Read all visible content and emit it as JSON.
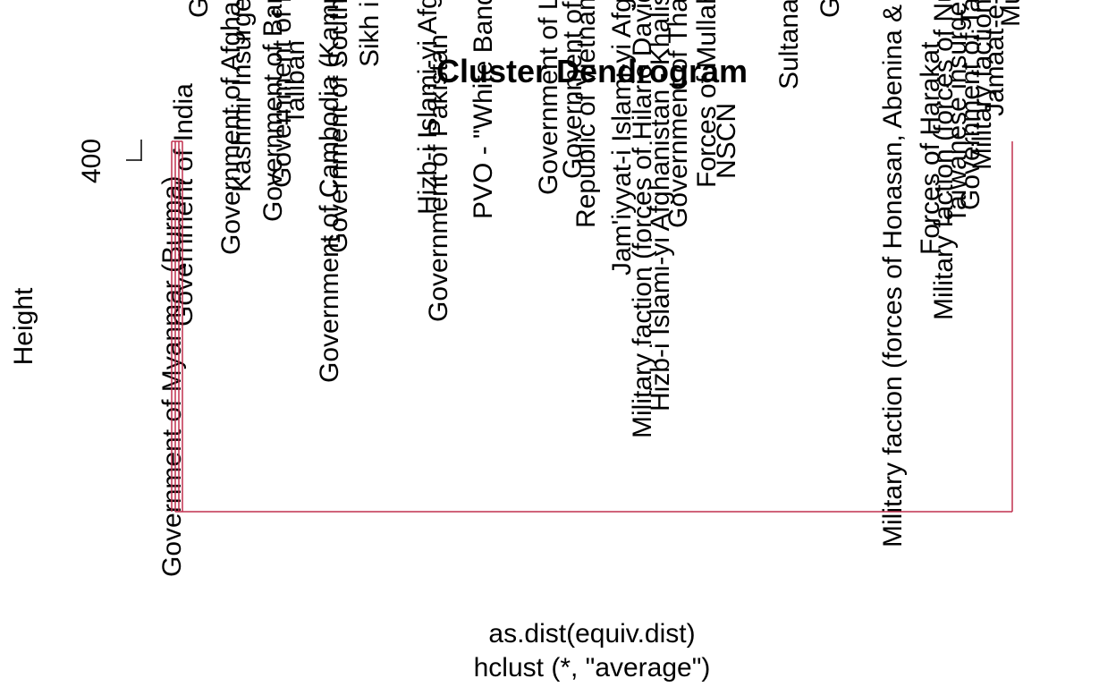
{
  "chart_data": {
    "type": "dendrogram",
    "title": "Cluster Dendrogram",
    "xlabel": "as.dist(equiv.dist)",
    "sublabel": "hclust (*, \"average\")",
    "ylabel": "Height",
    "y_ticks": [
      "400"
    ],
    "branch_color": "#c0304f",
    "leaves": [
      {
        "label": "Government of Myanmar (Burma)",
        "x": 0,
        "height": 0
      },
      {
        "label": "Government of India",
        "x": 1,
        "height": 0
      },
      {
        "label": "Government of Indonesia",
        "x": 2,
        "height": 0
      },
      {
        "label": "Government of Afghanistan",
        "x": 3,
        "height": 0
      },
      {
        "label": "Kashmir Insurgents",
        "x": 4,
        "height": 0
      },
      {
        "label": "Government of Bangladesh",
        "x": 5,
        "height": 0
      },
      {
        "label": "Government of Pakistan",
        "x": 6,
        "height": 0
      },
      {
        "label": "Taliban",
        "x": 7,
        "height": 0
      },
      {
        "label": "Government of Cambodia (Kampuchea)",
        "x": 8,
        "height": 0
      },
      {
        "label": "Government of South Vietnam",
        "x": 9,
        "height": 0
      },
      {
        "label": "Sikh insurgents",
        "x": 10,
        "height": 0
      },
      {
        "label": "Hizb-i Islami-yi Afghanistan",
        "x": 11,
        "height": 0
      },
      {
        "label": "Government of Pakistan",
        "x": 12,
        "height": 0
      },
      {
        "label": "PVO - \"White Band\" faction",
        "x": 13,
        "height": 0
      },
      {
        "label": "Government of Laos",
        "x": 14,
        "height": 0
      },
      {
        "label": "Government of Nepal",
        "x": 15,
        "height": 0
      },
      {
        "label": "Republic of Vietnam",
        "x": 16,
        "height": 0
      },
      {
        "label": "Jam'iyyat-i Islami-yi Afghanistan",
        "x": 17,
        "height": 0
      },
      {
        "label": "Military faction (forces of Hilario Davide)",
        "x": 18,
        "height": 0
      },
      {
        "label": "Hizb-i Islami-yi Afghanistan - Khalis faction",
        "x": 19,
        "height": 0
      },
      {
        "label": "Government of Thailand",
        "x": 20,
        "height": 0
      },
      {
        "label": "Forces of Mullah Dadullah",
        "x": 21,
        "height": 0
      },
      {
        "label": "NSCN",
        "x": 22,
        "height": 0
      },
      {
        "label": "Sultanate of Aceh",
        "x": 23,
        "height": 0
      },
      {
        "label": "Government of China",
        "x": 24,
        "height": 0
      },
      {
        "label": "Military faction (forces of Honasan, Abenina & Zumel)",
        "x": 25,
        "height": 0
      },
      {
        "label": "Forces of Harakat",
        "x": 26,
        "height": 0
      },
      {
        "label": "Military faction (forces of Nur)",
        "x": 27,
        "height": 0
      },
      {
        "label": "Taiwanese insurgents",
        "x": 28,
        "height": 0
      },
      {
        "label": "Government of Taiwan",
        "x": 29,
        "height": 0
      },
      {
        "label": "Military faction",
        "x": 30,
        "height": 0
      },
      {
        "label": "Jamaat-e-Islami",
        "x": 31,
        "height": 0
      },
      {
        "label": "Mujahideen",
        "x": 32,
        "height": 0
      }
    ],
    "merges": [
      {
        "left": 0,
        "right": 1,
        "height": 0
      },
      {
        "left": 2,
        "right": 3,
        "height": 0
      },
      {
        "group_a": "left-cluster",
        "group_b": "right-cluster",
        "height": 400
      }
    ],
    "grid": false,
    "legend": "none"
  }
}
